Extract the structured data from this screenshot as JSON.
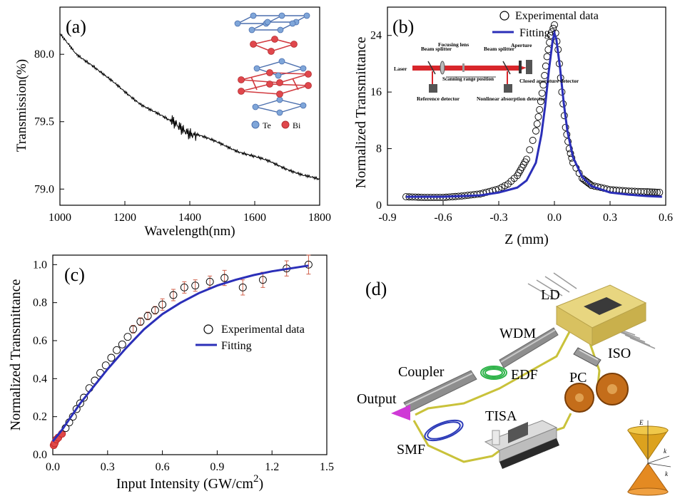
{
  "panels": {
    "a": {
      "label": "(a)",
      "legend": [
        {
          "name": "Te",
          "color": "#7fa6d9"
        },
        {
          "name": "Bi",
          "color": "#e0474c"
        }
      ]
    },
    "b": {
      "label": "(b)",
      "setup_labels": [
        "Beam splitter",
        "Focusing lens",
        "Beam splitter",
        "Aperture",
        "Laser",
        "Scanning range position",
        "Reference detector",
        "Nonlinear absorption detector",
        "Closed aperature detector"
      ]
    },
    "c": {
      "label": "(c)"
    },
    "d": {
      "label": "(d)",
      "components": [
        "LD",
        "WDM",
        "ISO",
        "Coupler",
        "EDF",
        "PC",
        "Output",
        "TISA",
        "SMF"
      ],
      "cone_labels": [
        "E",
        "k",
        "k"
      ]
    }
  },
  "chart_data": [
    {
      "panel": "a",
      "type": "line",
      "xlabel": "Wavelength(nm)",
      "ylabel": "Transmission(%)",
      "xlim": [
        1000,
        1800
      ],
      "ylim": [
        78.88,
        80.35
      ],
      "xticks": [
        1000,
        1200,
        1400,
        1600,
        1800
      ],
      "yticks": [
        79.0,
        79.5,
        80.0
      ],
      "ytick_labels": [
        "79.0",
        "79.5",
        "80.0"
      ],
      "series": [
        {
          "x": [
            1000,
            1050,
            1100,
            1150,
            1200,
            1250,
            1300,
            1350,
            1400,
            1450,
            1500,
            1550,
            1600,
            1650,
            1700,
            1750,
            1800
          ],
          "y": [
            80.15,
            80.0,
            79.92,
            79.82,
            79.72,
            79.63,
            79.56,
            79.49,
            79.43,
            79.38,
            79.33,
            79.28,
            79.24,
            79.2,
            79.15,
            79.1,
            79.07
          ]
        }
      ]
    },
    {
      "panel": "b",
      "type": "scatter",
      "xlabel": "Z (mm)",
      "ylabel": "Normalized Transmittance",
      "xlim": [
        -0.9,
        0.6
      ],
      "ylim": [
        0,
        28
      ],
      "xticks": [
        -0.9,
        -0.6,
        -0.3,
        0.0,
        0.3,
        0.6
      ],
      "xtick_labels": [
        "-0.9",
        "-0.6",
        "-0.3",
        "0.0",
        "0.3",
        "0.6"
      ],
      "yticks": [
        0,
        8,
        16,
        24
      ],
      "legend_position": "top-right",
      "series": [
        {
          "name": "Experimental data",
          "style": "open-circle",
          "x": [
            -0.8,
            -0.7,
            -0.6,
            -0.5,
            -0.4,
            -0.3,
            -0.25,
            -0.2,
            -0.15,
            -0.1,
            -0.08,
            -0.06,
            -0.04,
            -0.02,
            0.0,
            0.02,
            0.04,
            0.06,
            0.08,
            0.1,
            0.15,
            0.2,
            0.3,
            0.4,
            0.5,
            0.58
          ],
          "y": [
            1.2,
            1.1,
            1.1,
            1.3,
            1.6,
            2.3,
            3.0,
            4.2,
            6.5,
            10.5,
            13.5,
            17.0,
            21.0,
            24.0,
            25.5,
            22.0,
            16.0,
            11.0,
            8.0,
            6.0,
            3.8,
            2.8,
            2.2,
            2.0,
            1.9,
            1.8
          ]
        },
        {
          "name": "Fitting",
          "style": "line",
          "color": "#2b2fb8",
          "x": [
            -0.8,
            -0.6,
            -0.4,
            -0.3,
            -0.2,
            -0.15,
            -0.1,
            -0.07,
            -0.05,
            -0.03,
            -0.01,
            0.0,
            0.01,
            0.03,
            0.05,
            0.07,
            0.1,
            0.15,
            0.2,
            0.3,
            0.4,
            0.5,
            0.58
          ],
          "y": [
            1.2,
            1.2,
            1.4,
            1.8,
            2.5,
            3.5,
            6.0,
            10.0,
            14.0,
            19.0,
            23.2,
            24.3,
            23.5,
            19.5,
            14.5,
            10.5,
            6.8,
            4.0,
            2.7,
            1.8,
            1.5,
            1.3,
            1.2
          ]
        }
      ]
    },
    {
      "panel": "c",
      "type": "scatter",
      "xlabel": "Input Intensity (GW/cm",
      "xlabel_sup": "2",
      "xlabel_tail": ")",
      "ylabel": "Normalized Transmittance",
      "xlim": [
        0.0,
        1.5
      ],
      "ylim": [
        0.0,
        1.05
      ],
      "xticks": [
        0.0,
        0.3,
        0.6,
        0.9,
        1.2,
        1.5
      ],
      "xtick_labels": [
        "0.0",
        "0.3",
        "0.6",
        "0.9",
        "1.2",
        "1.5"
      ],
      "yticks": [
        0.0,
        0.2,
        0.4,
        0.6,
        0.8,
        1.0
      ],
      "ytick_labels": [
        "0.0",
        "0.2",
        "0.4",
        "0.6",
        "0.8",
        "1.0"
      ],
      "legend_position": "center-right",
      "series": [
        {
          "name": "Experimental data",
          "style": "open-circle",
          "x": [
            0.005,
            0.01,
            0.02,
            0.03,
            0.05,
            0.07,
            0.09,
            0.11,
            0.13,
            0.15,
            0.17,
            0.2,
            0.23,
            0.26,
            0.29,
            0.32,
            0.35,
            0.38,
            0.41,
            0.44,
            0.48,
            0.52,
            0.56,
            0.6,
            0.66,
            0.72,
            0.78,
            0.86,
            0.94,
            1.04,
            1.15,
            1.28,
            1.4
          ],
          "y": [
            0.05,
            0.06,
            0.08,
            0.09,
            0.11,
            0.14,
            0.17,
            0.2,
            0.24,
            0.27,
            0.3,
            0.35,
            0.39,
            0.43,
            0.47,
            0.51,
            0.55,
            0.58,
            0.62,
            0.66,
            0.7,
            0.73,
            0.76,
            0.79,
            0.84,
            0.88,
            0.89,
            0.91,
            0.93,
            0.88,
            0.92,
            0.98,
            1.0
          ],
          "error": [
            0,
            0,
            0,
            0,
            0,
            0,
            0,
            0,
            0,
            0,
            0,
            0,
            0,
            0,
            0,
            0,
            0,
            0,
            0,
            0.02,
            0.02,
            0.02,
            0.02,
            0.03,
            0.03,
            0.03,
            0.03,
            0.03,
            0.04,
            0.04,
            0.04,
            0.04,
            0.05
          ]
        },
        {
          "name": "Fitting",
          "style": "line",
          "color": "#2b2fb8",
          "x": [
            0.0,
            0.05,
            0.1,
            0.15,
            0.2,
            0.3,
            0.4,
            0.5,
            0.6,
            0.7,
            0.8,
            0.9,
            1.0,
            1.1,
            1.2,
            1.3,
            1.4
          ],
          "y": [
            0.07,
            0.13,
            0.2,
            0.27,
            0.33,
            0.45,
            0.56,
            0.66,
            0.74,
            0.8,
            0.85,
            0.89,
            0.92,
            0.945,
            0.965,
            0.98,
            0.995
          ]
        }
      ]
    }
  ]
}
